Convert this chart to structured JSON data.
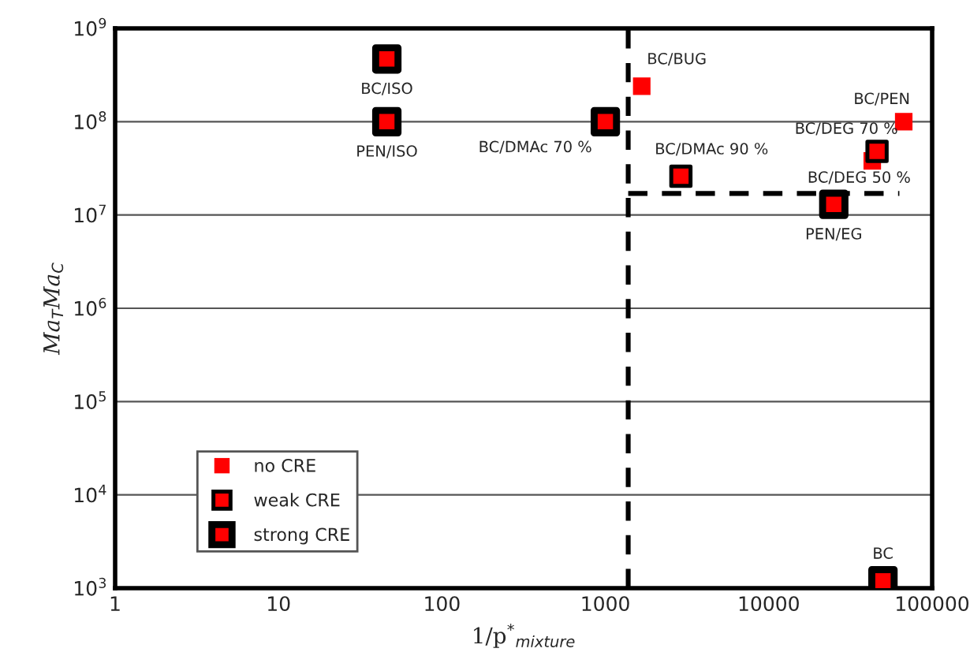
{
  "chart_data": {
    "type": "scatter",
    "xlabel": "1/p$^{*}$$_{mixture}$",
    "ylabel": "Ma$_{T}$Ma$_{C}$",
    "xlim": [
      1,
      100000
    ],
    "ylim": [
      1000,
      1000000000
    ],
    "log": "xy",
    "xticks": [
      1,
      10,
      100,
      1000,
      10000,
      100000
    ],
    "yticks": [
      {
        "value": 1000,
        "label": "10$^{3}$"
      },
      {
        "value": 10000,
        "label": "10$^{4}$"
      },
      {
        "value": 100000,
        "label": "10$^{5}$"
      },
      {
        "value": 1000000,
        "label": "10$^{6}$"
      },
      {
        "value": 10000000,
        "label": "10$^{7}$"
      },
      {
        "value": 100000000,
        "label": "10$^{8}$"
      },
      {
        "value": 1000000000,
        "label": "10$^{9}$"
      }
    ],
    "grid": "y",
    "legend": "bottom left",
    "marker": "square",
    "ref_lines": [
      {
        "axis": "x",
        "value": 1380,
        "color": "#000000",
        "line_style": "dashed"
      }
    ],
    "series": [
      {
        "name": "no CRE",
        "color": "#ff0000",
        "x": [
          1670,
          67000,
          43000
        ],
        "values": [
          240000000,
          100000000,
          38000000
        ]
      },
      {
        "name": "weak CRE",
        "color": "#ff0000",
        "x": [
          2900,
          46000
        ],
        "values": [
          26000000,
          48000000
        ]
      },
      {
        "name": "strong CRE",
        "color": "#ff0000",
        "x": [
          46,
          46,
          1000,
          25000,
          50000
        ],
        "values": [
          470000000,
          100000000,
          100000000,
          13000000,
          1200
        ]
      },
      {
        "type": "line",
        "color": "#000000",
        "line_style": "dashed",
        "marker": "none",
        "x": [
          1380,
          63000
        ],
        "values": [
          17000000,
          17000000
        ]
      }
    ],
    "annotations": [
      {
        "text": "BC/ISO",
        "x": 46,
        "y": 470000000
      },
      {
        "text": "PEN/ISO",
        "x": 46,
        "y": 100000000
      },
      {
        "text": "BC/DMAc 70 %",
        "x": 1000,
        "y": 100000000
      },
      {
        "text": "BC/BUG",
        "x": 1670,
        "y": 240000000
      },
      {
        "text": "BC/DMAc 90 %",
        "x": 2900,
        "y": 26000000
      },
      {
        "text": "BC/DEG 70 %",
        "x": 46000,
        "y": 48000000
      },
      {
        "text": "BC/PEN",
        "x": 67000,
        "y": 100000000
      },
      {
        "text": "BC/DEG 50 %",
        "x": 43000,
        "y": 38000000
      },
      {
        "text": "PEN/EG",
        "x": 25000,
        "y": 13000000
      },
      {
        "text": "BC",
        "x": 50000,
        "y": 1200
      }
    ]
  }
}
